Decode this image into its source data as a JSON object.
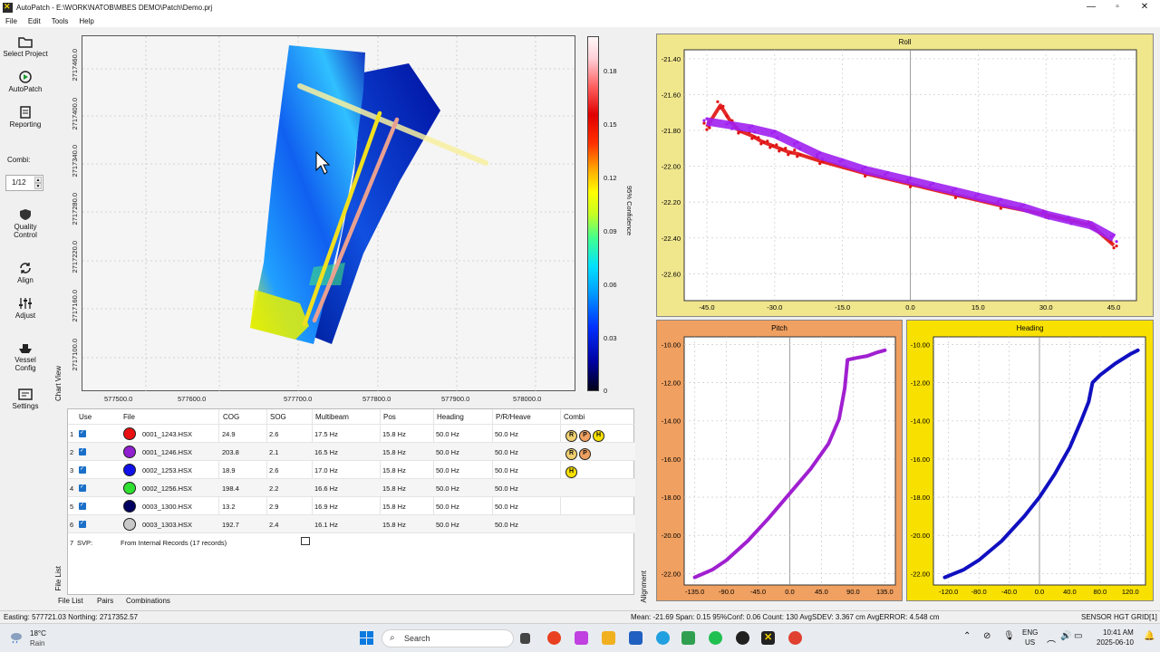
{
  "window": {
    "title": "AutoPatch - E:\\WORK\\NATOB\\MBES DEMO\\Patch\\Demo.prj",
    "minimize": "—",
    "maximize": "▫",
    "close": "✕"
  },
  "menu": [
    "File",
    "Edit",
    "Tools",
    "Help"
  ],
  "toolbar": {
    "select_project": "Select Project",
    "autopatch": "AutoPatch",
    "reporting": "Reporting",
    "combi_label": "Combi:",
    "combi_value": "1/12",
    "quality_control": [
      "Quality",
      "Control"
    ],
    "align": "Align",
    "adjust": "Adjust",
    "vessel_config": [
      "Vessel",
      "Config"
    ],
    "settings": "Settings"
  },
  "side_tabs": {
    "chart_view": "Chart View",
    "file_list": "File List",
    "alignment": "Alignment"
  },
  "map": {
    "x_ticks": [
      "577500.0",
      "577600.0",
      "577700.0",
      "577800.0",
      "577900.0",
      "578000.0"
    ],
    "y_ticks": [
      "2717460.0",
      "2717400.0",
      "2717340.0",
      "2717280.0",
      "2717220.0",
      "2717160.0",
      "2717100.0"
    ],
    "colorbar_label": "95% Confidence",
    "colorbar_ticks": [
      "0.18",
      "0.15",
      "0.12",
      "0.09",
      "0.06",
      "0.03",
      "0"
    ]
  },
  "table": {
    "headers": [
      "Use",
      "File",
      "COG",
      "SOG",
      "Multibeam",
      "Pos",
      "Heading",
      "P/R/Heave",
      "Combi"
    ],
    "rows": [
      {
        "n": "1",
        "file": "0001_1243.HSX",
        "color": "#e81010",
        "cog": "24.9",
        "sog": "2.6",
        "mb": "17.5 Hz",
        "pos": "15.8 Hz",
        "hdg": "50.0 Hz",
        "prh": "50.0 Hz",
        "combi": [
          "R",
          "P",
          "H"
        ]
      },
      {
        "n": "2",
        "file": "0001_1246.HSX",
        "color": "#9020d0",
        "cog": "203.8",
        "sog": "2.1",
        "mb": "16.5 Hz",
        "pos": "15.8 Hz",
        "hdg": "50.0 Hz",
        "prh": "50.0 Hz",
        "combi": [
          "R",
          "P"
        ]
      },
      {
        "n": "3",
        "file": "0002_1253.HSX",
        "color": "#1010e8",
        "cog": "18.9",
        "sog": "2.6",
        "mb": "17.0 Hz",
        "pos": "15.8 Hz",
        "hdg": "50.0 Hz",
        "prh": "50.0 Hz",
        "combi": [
          "H"
        ]
      },
      {
        "n": "4",
        "file": "0002_1256.HSX",
        "color": "#30e030",
        "cog": "198.4",
        "sog": "2.2",
        "mb": "16.6 Hz",
        "pos": "15.8 Hz",
        "hdg": "50.0 Hz",
        "prh": "50.0 Hz",
        "combi": []
      },
      {
        "n": "5",
        "file": "0003_1300.HSX",
        "color": "#000060",
        "cog": "13.2",
        "sog": "2.9",
        "mb": "16.9 Hz",
        "pos": "15.8 Hz",
        "hdg": "50.0 Hz",
        "prh": "50.0 Hz",
        "combi": []
      },
      {
        "n": "6",
        "file": "0003_1303.HSX",
        "color": "#c8c8c8",
        "cog": "192.7",
        "sog": "2.4",
        "mb": "16.1 Hz",
        "pos": "15.8 Hz",
        "hdg": "50.0 Hz",
        "prh": "50.0 Hz",
        "combi": []
      }
    ],
    "svp_n": "7",
    "svp_label": "SVP:",
    "svp_value": "From Internal Records (17 records)"
  },
  "bottom_tabs": [
    "File List",
    "Pairs",
    "Combinations"
  ],
  "status": {
    "coords": "Easting: 577721.03  Northing: 2717352.57",
    "stats": "Mean: -21.69  Span:  0.15  95%Conf:  0.06  Count: 130  AvgSDEV:  3.367 cm  AvgERROR:  4.548 cm",
    "sensor": "SENSOR HGT",
    "grid": "GRID[1]"
  },
  "taskbar": {
    "weather_temp": "18°C",
    "weather_desc": "Rain",
    "search": "Search",
    "lang": "ENG",
    "region": "US",
    "time": "10:41 AM",
    "date": "2025-06-10"
  },
  "chart_data": [
    {
      "type": "scatter",
      "title": "Roll",
      "background": "#f0e68c",
      "x_ticks": [
        "-45.0",
        "-30.0",
        "-15.0",
        "0.0",
        "15.0",
        "30.0",
        "45.0"
      ],
      "y_ticks": [
        "-21.40",
        "-21.60",
        "-21.80",
        "-22.00",
        "-22.20",
        "-22.40",
        "-22.60"
      ],
      "xlim": [
        -50,
        50
      ],
      "ylim": [
        -22.75,
        -21.35
      ],
      "series": [
        {
          "color": "#e01010",
          "points": [
            [
              -45,
              -21.78
            ],
            [
              -42,
              -21.66
            ],
            [
              -40,
              -21.74
            ],
            [
              -38,
              -21.8
            ],
            [
              -35,
              -21.83
            ],
            [
              -33,
              -21.86
            ],
            [
              -31,
              -21.88
            ],
            [
              -29,
              -21.9
            ],
            [
              -27,
              -21.92
            ],
            [
              -25,
              -21.93
            ],
            [
              -20,
              -21.97
            ],
            [
              -10,
              -22.04
            ],
            [
              0,
              -22.1
            ],
            [
              10,
              -22.16
            ],
            [
              20,
              -22.22
            ],
            [
              30,
              -22.27
            ],
            [
              40,
              -22.33
            ],
            [
              45,
              -22.44
            ]
          ]
        },
        {
          "color": "#a020f0",
          "points": [
            [
              -45,
              -21.75
            ],
            [
              -40,
              -21.77
            ],
            [
              -35,
              -21.79
            ],
            [
              -30,
              -21.82
            ],
            [
              -25,
              -21.88
            ],
            [
              -20,
              -21.94
            ],
            [
              -15,
              -21.98
            ],
            [
              -10,
              -22.02
            ],
            [
              -5,
              -22.05
            ],
            [
              0,
              -22.08
            ],
            [
              5,
              -22.11
            ],
            [
              10,
              -22.14
            ],
            [
              15,
              -22.17
            ],
            [
              20,
              -22.2
            ],
            [
              25,
              -22.23
            ],
            [
              30,
              -22.27
            ],
            [
              35,
              -22.3
            ],
            [
              40,
              -22.33
            ],
            [
              45,
              -22.4
            ]
          ]
        }
      ]
    },
    {
      "type": "line",
      "title": "Pitch",
      "background": "#f0a060",
      "x_ticks": [
        "-135.0",
        "-90.0",
        "-45.0",
        "0.0",
        "45.0",
        "90.0",
        "135.0"
      ],
      "y_ticks": [
        "-10.00",
        "-12.00",
        "-14.00",
        "-16.00",
        "-18.00",
        "-20.00",
        "-22.00"
      ],
      "xlim": [
        -150,
        150
      ],
      "ylim": [
        -22.6,
        -9.6
      ],
      "series": [
        {
          "color": "#a020d0",
          "points": [
            [
              -135,
              -22.2
            ],
            [
              -110,
              -21.8
            ],
            [
              -90,
              -21.3
            ],
            [
              -60,
              -20.3
            ],
            [
              -30,
              -19.1
            ],
            [
              0,
              -17.8
            ],
            [
              30,
              -16.5
            ],
            [
              55,
              -15.2
            ],
            [
              70,
              -13.9
            ],
            [
              78,
              -12.3
            ],
            [
              82,
              -10.8
            ],
            [
              95,
              -10.7
            ],
            [
              110,
              -10.6
            ],
            [
              125,
              -10.4
            ],
            [
              135,
              -10.3
            ]
          ]
        }
      ]
    },
    {
      "type": "line",
      "title": "Heading",
      "background": "#f8e000",
      "x_ticks": [
        "-120.0",
        "-80.0",
        "-40.0",
        "0.0",
        "40.0",
        "80.0",
        "120.0"
      ],
      "y_ticks": [
        "-10.00",
        "-12.00",
        "-14.00",
        "-16.00",
        "-18.00",
        "-20.00",
        "-22.00"
      ],
      "xlim": [
        -140,
        140
      ],
      "ylim": [
        -22.6,
        -9.6
      ],
      "series": [
        {
          "color": "#1010c0",
          "points": [
            [
              -125,
              -22.2
            ],
            [
              -100,
              -21.8
            ],
            [
              -80,
              -21.3
            ],
            [
              -50,
              -20.3
            ],
            [
              -20,
              -19.0
            ],
            [
              0,
              -18.0
            ],
            [
              20,
              -16.8
            ],
            [
              40,
              -15.4
            ],
            [
              55,
              -14.0
            ],
            [
              65,
              -13.0
            ],
            [
              70,
              -12.0
            ],
            [
              80,
              -11.6
            ],
            [
              100,
              -11.0
            ],
            [
              120,
              -10.5
            ],
            [
              130,
              -10.3
            ]
          ]
        }
      ]
    }
  ]
}
